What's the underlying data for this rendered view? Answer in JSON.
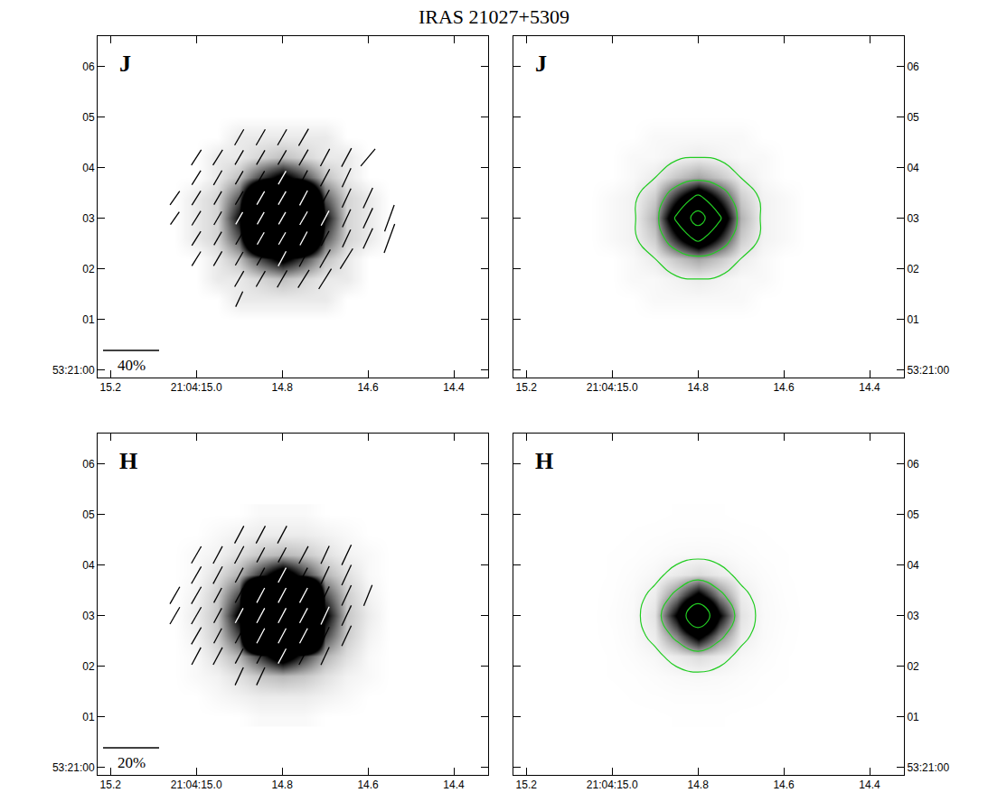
{
  "title": "IRAS 21027+5309",
  "images": {
    "J": {
      "x": [
        15.05,
        15.0,
        14.95,
        14.9,
        14.85,
        14.8,
        14.75,
        14.7,
        14.65,
        14.6,
        14.55
      ],
      "y": [
        1.0,
        1.4,
        1.8,
        2.2,
        2.6,
        3.0,
        3.4,
        3.8,
        4.2,
        4.6,
        5.0
      ],
      "z": [
        [
          0,
          0,
          0,
          0,
          0,
          0,
          0,
          0,
          0,
          0,
          0
        ],
        [
          0,
          0,
          0,
          1,
          1,
          1,
          1,
          1,
          0,
          0,
          0
        ],
        [
          0,
          0,
          1,
          1,
          2,
          3,
          2,
          1,
          1,
          0,
          0
        ],
        [
          0,
          0,
          1,
          3,
          9,
          14,
          9,
          3,
          1,
          0,
          0
        ],
        [
          0,
          1,
          2,
          8,
          35,
          62,
          35,
          8,
          2,
          1,
          0
        ],
        [
          0,
          1,
          2,
          12,
          59,
          106,
          59,
          12,
          2,
          1,
          0
        ],
        [
          0,
          1,
          2,
          8,
          35,
          62,
          35,
          8,
          2,
          1,
          0
        ],
        [
          0,
          0,
          1,
          3,
          9,
          14,
          9,
          3,
          1,
          0,
          0
        ],
        [
          0,
          0,
          1,
          1,
          2,
          3,
          2,
          1,
          1,
          0,
          0
        ],
        [
          0,
          0,
          0,
          1,
          1,
          1,
          1,
          1,
          0,
          0,
          0
        ],
        [
          0,
          0,
          0,
          0,
          0,
          0,
          0,
          0,
          0,
          0,
          0
        ]
      ]
    },
    "H": {
      "x": [
        15.05,
        15.0,
        14.95,
        14.9,
        14.85,
        14.8,
        14.75,
        14.7,
        14.65,
        14.6,
        14.55
      ],
      "y": [
        1.0,
        1.4,
        1.8,
        2.2,
        2.6,
        3.0,
        3.4,
        3.8,
        4.2,
        4.6,
        5.0
      ],
      "z": [
        [
          0,
          0,
          0,
          0,
          0.1,
          0.1,
          0.1,
          0,
          0,
          0,
          0
        ],
        [
          0,
          0,
          0.1,
          0.2,
          0.3,
          0.3,
          0.3,
          0.2,
          0.1,
          0,
          0
        ],
        [
          0,
          0.1,
          0.2,
          0.5,
          0.9,
          1.1,
          0.9,
          0.5,
          0.2,
          0.1,
          0
        ],
        [
          0,
          0.1,
          0.5,
          1.2,
          3.2,
          5.5,
          3.2,
          1.2,
          0.5,
          0.1,
          0
        ],
        [
          0,
          0.2,
          0.8,
          2.9,
          19,
          46,
          19,
          2.9,
          0.8,
          0.2,
          0
        ],
        [
          0,
          0.3,
          0.9,
          4.4,
          42,
          105,
          42,
          4.4,
          0.9,
          0.3,
          0
        ],
        [
          0,
          0.2,
          0.8,
          2.9,
          19,
          46,
          19,
          2.9,
          0.8,
          0.2,
          0
        ],
        [
          0,
          0.1,
          0.5,
          1.2,
          3.2,
          5.5,
          3.2,
          1.2,
          0.5,
          0.1,
          0
        ],
        [
          0,
          0.1,
          0.2,
          0.5,
          0.9,
          1.1,
          0.9,
          0.5,
          0.2,
          0.1,
          0
        ],
        [
          0,
          0,
          0.1,
          0.2,
          0.3,
          0.3,
          0.3,
          0.2,
          0.1,
          0,
          0
        ],
        [
          0,
          0,
          0,
          0,
          0.1,
          0.1,
          0.1,
          0,
          0,
          0,
          0
        ]
      ]
    }
  },
  "chart_data": [
    {
      "type": "heatmap",
      "title": "J",
      "xlim": [
        15.23,
        14.32
      ],
      "ylim": [
        -0.15,
        6.6
      ],
      "xticks": [
        15.2,
        {
          "value": 15.0,
          "label": "21:04:15.0"
        },
        14.8,
        14.6,
        14.4
      ],
      "yticks": [
        {
          "value": 0,
          "label": "53:21:00"
        },
        {
          "value": 1,
          "label": "01"
        },
        {
          "value": 2,
          "label": "02"
        },
        {
          "value": 3,
          "label": "03"
        },
        {
          "value": 4,
          "label": "04"
        },
        {
          "value": 5,
          "label": "05"
        },
        {
          "value": 6,
          "label": "06"
        }
      ],
      "zlim": [
        0,
        12
      ],
      "scale_bar": {
        "value": 40,
        "label": "40%"
      },
      "vectors": [
        {
          "y": 4.6,
          "x": [
            14.9,
            14.85,
            14.8,
            14.75
          ],
          "p": [
            13,
            13,
            13,
            14
          ],
          "angle": [
            150,
            150,
            150,
            150
          ]
        },
        {
          "y": 4.2,
          "x": [
            15.0,
            14.95,
            14.9,
            14.85,
            14.8,
            14.75,
            14.7,
            14.65,
            14.6
          ],
          "p": [
            13,
            13,
            12,
            12,
            12,
            13,
            14,
            15,
            16
          ],
          "angle": [
            147,
            148,
            150,
            150,
            150,
            150,
            152,
            152,
            140
          ]
        },
        {
          "y": 3.8,
          "x": [
            15.0,
            14.95,
            14.9,
            14.85,
            14.8,
            14.75,
            14.7,
            14.65
          ],
          "p": [
            12,
            12,
            11,
            11,
            11,
            12,
            14,
            15
          ],
          "angle": [
            148,
            150,
            150,
            150,
            150,
            152,
            152,
            155
          ]
        },
        {
          "y": 3.4,
          "x": [
            15.05,
            15.0,
            14.95,
            14.9,
            14.85,
            14.8,
            14.75,
            14.7,
            14.65,
            14.6
          ],
          "p": [
            12,
            12,
            11,
            11,
            11,
            11,
            12,
            13,
            15,
            16
          ],
          "angle": [
            145,
            148,
            150,
            150,
            150,
            150,
            152,
            152,
            155,
            155
          ]
        },
        {
          "y": 3.0,
          "x": [
            15.05,
            15.0,
            14.95,
            14.9,
            14.85,
            14.8,
            14.75,
            14.7,
            14.65,
            14.6,
            14.55
          ],
          "p": [
            11,
            12,
            11,
            10,
            10,
            10,
            11,
            12,
            14,
            16,
            20
          ],
          "angle": [
            145,
            148,
            150,
            150,
            150,
            150,
            150,
            152,
            155,
            155,
            160
          ]
        },
        {
          "y": 2.6,
          "x": [
            15.0,
            14.95,
            14.9,
            14.85,
            14.8,
            14.75,
            14.7,
            14.65,
            14.6,
            14.55
          ],
          "p": [
            12,
            11,
            10,
            10,
            10,
            11,
            12,
            14,
            16,
            22
          ],
          "angle": [
            148,
            150,
            150,
            150,
            150,
            152,
            152,
            155,
            155,
            160
          ]
        },
        {
          "y": 2.2,
          "x": [
            15.0,
            14.95,
            14.9,
            14.85,
            14.8,
            14.75,
            14.7,
            14.65
          ],
          "p": [
            12,
            12,
            11,
            11,
            12,
            13,
            15,
            17
          ],
          "angle": [
            148,
            150,
            150,
            150,
            152,
            152,
            150,
            148
          ]
        },
        {
          "y": 1.8,
          "x": [
            14.9,
            14.85,
            14.8,
            14.75,
            14.7
          ],
          "p": [
            13,
            13,
            14,
            15,
            17
          ],
          "angle": [
            150,
            150,
            150,
            148,
            148
          ]
        },
        {
          "y": 1.4,
          "x": [
            14.9
          ],
          "p": [
            12
          ],
          "angle": [
            155
          ]
        }
      ]
    },
    {
      "type": "heatmap",
      "title": "J",
      "xlim": [
        15.23,
        14.32
      ],
      "ylim": [
        -0.15,
        6.6
      ],
      "xticks": [
        15.2,
        {
          "value": 15.0,
          "label": "21:04:15.0"
        },
        14.8,
        14.6,
        14.4
      ],
      "yticks": [
        {
          "value": 0,
          "label": "53:21:00"
        },
        {
          "value": 1,
          "label": "01"
        },
        {
          "value": 2,
          "label": "02"
        },
        {
          "value": 3,
          "label": "03"
        },
        {
          "value": 4,
          "label": "04"
        },
        {
          "value": 5,
          "label": "05"
        },
        {
          "value": 6,
          "label": "06"
        }
      ],
      "zlim": [
        0,
        40
      ],
      "contours": {
        "levels": [
          3,
          20,
          55,
          90
        ],
        "color": "#22cc22"
      }
    },
    {
      "type": "heatmap",
      "title": "H",
      "xlim": [
        15.23,
        14.32
      ],
      "ylim": [
        -0.15,
        6.6
      ],
      "xticks": [
        15.2,
        {
          "value": 15.0,
          "label": "21:04:15.0"
        },
        14.8,
        14.6,
        14.4
      ],
      "yticks": [
        {
          "value": 0,
          "label": "53:21:00"
        },
        {
          "value": 1,
          "label": "01"
        },
        {
          "value": 2,
          "label": "02"
        },
        {
          "value": 3,
          "label": "03"
        },
        {
          "value": 4,
          "label": "04"
        },
        {
          "value": 5,
          "label": "05"
        },
        {
          "value": 6,
          "label": "06"
        }
      ],
      "zlim": [
        0,
        4
      ],
      "scale_bar": {
        "value": 20,
        "label": "20%"
      },
      "vectors": [
        {
          "y": 4.6,
          "x": [
            14.9,
            14.85,
            14.8
          ],
          "p": [
            7,
            7,
            7
          ],
          "angle": [
            152,
            152,
            152
          ]
        },
        {
          "y": 4.2,
          "x": [
            15.0,
            14.95,
            14.9,
            14.85,
            14.8,
            14.75,
            14.7,
            14.65
          ],
          "p": [
            7,
            7,
            7,
            6,
            6,
            7,
            7,
            8
          ],
          "angle": [
            150,
            152,
            152,
            152,
            152,
            152,
            155,
            155
          ]
        },
        {
          "y": 3.8,
          "x": [
            15.0,
            14.95,
            14.9,
            14.85,
            14.8,
            14.75,
            14.7,
            14.65
          ],
          "p": [
            7,
            7,
            6,
            6,
            6,
            6,
            7,
            8
          ],
          "angle": [
            150,
            152,
            152,
            152,
            152,
            152,
            155,
            155
          ]
        },
        {
          "y": 3.4,
          "x": [
            15.05,
            15.0,
            14.95,
            14.9,
            14.85,
            14.8,
            14.75,
            14.7,
            14.65,
            14.6
          ],
          "p": [
            7,
            7,
            6,
            6,
            6,
            6,
            6,
            7,
            8,
            8
          ],
          "angle": [
            150,
            150,
            152,
            152,
            152,
            152,
            152,
            155,
            155,
            158
          ]
        },
        {
          "y": 3.0,
          "x": [
            15.05,
            15.0,
            14.95,
            14.9,
            14.85,
            14.8,
            14.75,
            14.7,
            14.65
          ],
          "p": [
            7,
            7,
            6,
            6,
            6,
            6,
            6,
            7,
            8
          ],
          "angle": [
            150,
            150,
            152,
            152,
            152,
            152,
            152,
            155,
            155
          ]
        },
        {
          "y": 2.6,
          "x": [
            15.0,
            14.95,
            14.9,
            14.85,
            14.8,
            14.75,
            14.7,
            14.65
          ],
          "p": [
            7,
            6,
            6,
            6,
            6,
            6,
            7,
            8
          ],
          "angle": [
            150,
            152,
            152,
            152,
            152,
            152,
            155,
            155
          ]
        },
        {
          "y": 2.2,
          "x": [
            15.0,
            14.95,
            14.9,
            14.85,
            14.8,
            14.75,
            14.7
          ],
          "p": [
            7,
            7,
            6,
            6,
            6,
            7,
            7
          ],
          "angle": [
            152,
            152,
            152,
            152,
            152,
            152,
            155
          ]
        },
        {
          "y": 1.8,
          "x": [
            14.9,
            14.85
          ],
          "p": [
            7,
            7
          ],
          "angle": [
            155,
            155
          ]
        }
      ]
    },
    {
      "type": "heatmap",
      "title": "H",
      "xlim": [
        15.23,
        14.32
      ],
      "ylim": [
        -0.15,
        6.6
      ],
      "xticks": [
        15.2,
        {
          "value": 15.0,
          "label": "21:04:15.0"
        },
        14.8,
        14.6,
        14.4
      ],
      "yticks": [
        {
          "value": 0,
          "label": "53:21:00"
        },
        {
          "value": 1,
          "label": "01"
        },
        {
          "value": 2,
          "label": "02"
        },
        {
          "value": 3,
          "label": "03"
        },
        {
          "value": 4,
          "label": "04"
        },
        {
          "value": 5,
          "label": "05"
        },
        {
          "value": 6,
          "label": "06"
        }
      ],
      "zlim": [
        0,
        40
      ],
      "contours": {
        "levels": [
          2,
          15,
          70
        ],
        "color": "#22cc22"
      }
    }
  ]
}
